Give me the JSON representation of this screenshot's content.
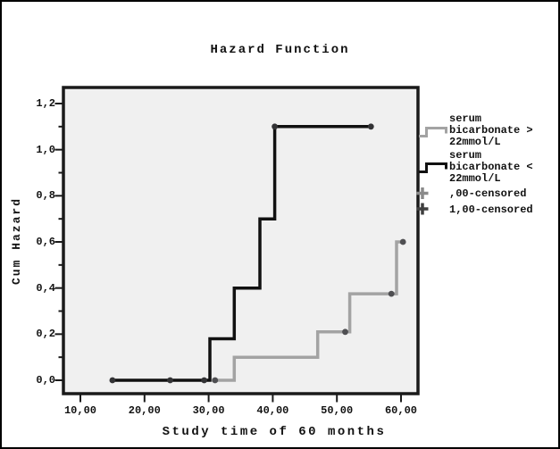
{
  "colors": {
    "page_bg": "#ffffff",
    "outer_border": "#000000",
    "plot_bg": "#f0f0f0",
    "plot_border": "#1a1a1a",
    "tick": "#1a1a1a",
    "text": "#111111"
  },
  "figure": {
    "title": "Hazard Function",
    "y_axis": {
      "label": "Cum Hazard"
    },
    "x_axis": {
      "label": "Study time of 60 months"
    }
  },
  "legend": {
    "items": [
      {
        "id": "series-gt-22",
        "label": "serum bicarbonate > 22mmol/L",
        "marker": "step-line",
        "color": "#a3a3a3"
      },
      {
        "id": "series-lt-22",
        "label": "serum bicarbonate < 22mmol/L",
        "marker": "step-line",
        "color": "#111111"
      },
      {
        "id": "censored-00",
        "label": ",00-censored",
        "marker": "plus",
        "color": "#8a8a8a"
      },
      {
        "id": "censored-100",
        "label": "1,00-censored",
        "marker": "plus",
        "color": "#3f3f3f"
      }
    ]
  },
  "chart_data": {
    "type": "line",
    "subtype": "step-function-cumulative-hazard",
    "title": "Hazard Function",
    "xlabel": "Study time of 60 months",
    "ylabel": "Cum Hazard",
    "xlim": [
      7.2,
      62.6
    ],
    "ylim": [
      -0.07,
      1.27
    ],
    "grid": false,
    "legend_position": "right",
    "x_tick_values": [
      10,
      20,
      30,
      40,
      50,
      60
    ],
    "x_tick_labels": [
      "10,00",
      "20,00",
      "30,00",
      "40,00",
      "50,00",
      "60,00"
    ],
    "y_tick_values": [
      0,
      0.2,
      0.4,
      0.6,
      0.8,
      1.0,
      1.2
    ],
    "y_tick_labels": [
      "0,0",
      "0,2",
      "0,4",
      "0,6",
      "0,8",
      "1,0",
      "1,2"
    ],
    "y_minor_tick_values": [
      0.1,
      0.3,
      0.5,
      0.7,
      0.9,
      1.1
    ],
    "series": [
      {
        "id": "serum-bicarbonate-gt-22",
        "name": "serum bicarbonate > 22mmol/L",
        "color": "#a3a3a3",
        "marker_color": "#4f4f52",
        "step_points": [
          [
            30.5,
            0
          ],
          [
            34,
            0
          ],
          [
            34,
            0.1
          ],
          [
            47,
            0.1
          ],
          [
            47,
            0.21
          ],
          [
            52,
            0.21
          ],
          [
            52,
            0.375
          ],
          [
            59.3,
            0.375
          ],
          [
            59.3,
            0.6
          ],
          [
            60.3,
            0.6
          ]
        ],
        "censored_points": [
          [
            31,
            0
          ],
          [
            51.3,
            0.21
          ],
          [
            58.5,
            0.375
          ],
          [
            60.3,
            0.6
          ]
        ]
      },
      {
        "id": "serum-bicarbonate-lt-22",
        "name": "serum bicarbonate < 22mmol/L",
        "color": "#111111",
        "marker_color": "#333335",
        "step_points": [
          [
            15,
            0
          ],
          [
            30.2,
            0
          ],
          [
            30.2,
            0.18
          ],
          [
            34,
            0.18
          ],
          [
            34,
            0.4
          ],
          [
            38,
            0.4
          ],
          [
            38,
            0.7
          ],
          [
            40.3,
            0.7
          ],
          [
            40.3,
            1.1
          ],
          [
            55.3,
            1.1
          ]
        ],
        "censored_points": [
          [
            15,
            0
          ],
          [
            24,
            0
          ],
          [
            29.3,
            0
          ],
          [
            40.3,
            1.1
          ],
          [
            55.3,
            1.1
          ]
        ]
      }
    ]
  }
}
